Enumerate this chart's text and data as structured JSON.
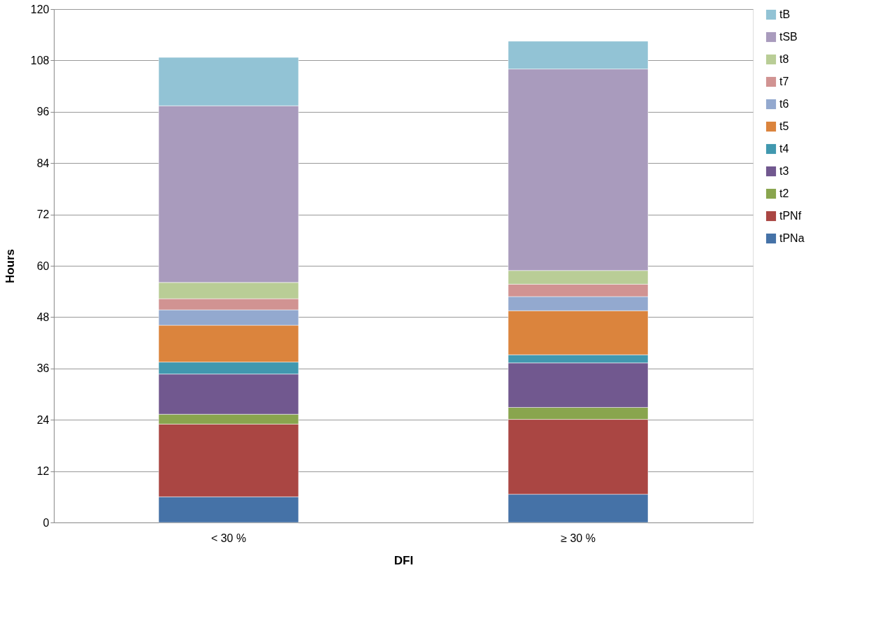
{
  "chart_data": {
    "type": "bar",
    "stacked": true,
    "xlabel": "DFI",
    "ylabel": "Hours",
    "categories": [
      "< 30 %",
      "≥ 30 %"
    ],
    "series": [
      {
        "name": "tPNa",
        "color": "#4572a7",
        "values": [
          6.0,
          6.6
        ]
      },
      {
        "name": "tPNf",
        "color": "#aa4643",
        "values": [
          17.0,
          17.5
        ]
      },
      {
        "name": "t2",
        "color": "#89a54e",
        "values": [
          2.3,
          2.8
        ]
      },
      {
        "name": "t3",
        "color": "#71588f",
        "values": [
          9.4,
          10.4
        ]
      },
      {
        "name": "t4",
        "color": "#4198af",
        "values": [
          2.8,
          1.9
        ]
      },
      {
        "name": "t5",
        "color": "#db843d",
        "values": [
          8.6,
          10.3
        ]
      },
      {
        "name": "t6",
        "color": "#93a9cf",
        "values": [
          3.6,
          3.3
        ]
      },
      {
        "name": "t7",
        "color": "#d19392",
        "values": [
          2.6,
          2.9
        ]
      },
      {
        "name": "t8",
        "color": "#b9cd96",
        "values": [
          3.8,
          3.2
        ]
      },
      {
        "name": "tSB",
        "color": "#a99bbd",
        "values": [
          41.3,
          47.1
        ]
      },
      {
        "name": "tB",
        "color": "#92c3d5",
        "values": [
          11.3,
          6.5
        ]
      }
    ],
    "ylim": [
      0,
      120
    ],
    "yticks": [
      0,
      12,
      24,
      36,
      48,
      60,
      72,
      84,
      96,
      108,
      120
    ],
    "grid": "y",
    "legend": "right"
  }
}
